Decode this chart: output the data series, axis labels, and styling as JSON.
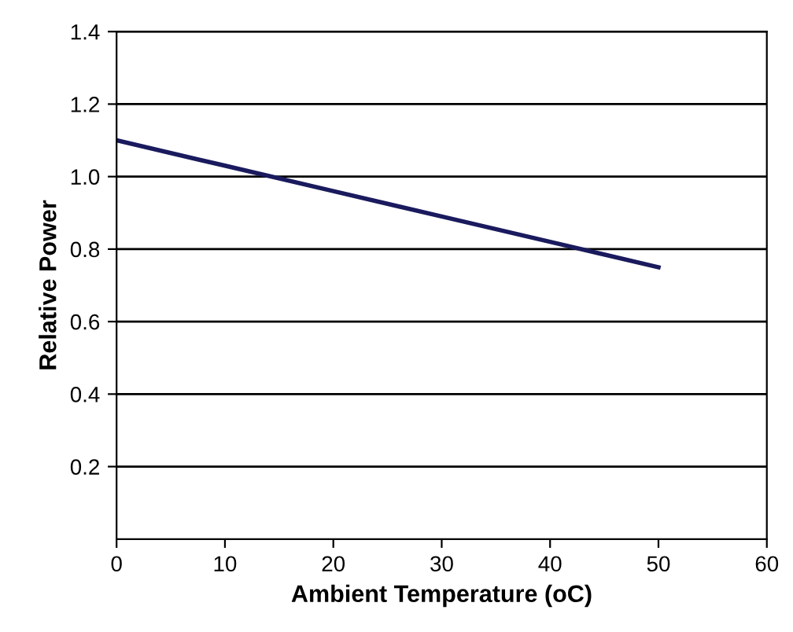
{
  "chart_data": {
    "type": "line",
    "xlabel": "Ambient Temperature (oC)",
    "ylabel": "Relative Power",
    "x": [
      0,
      10,
      20,
      30,
      40,
      50
    ],
    "series": [
      {
        "color": "#1a1a5e",
        "values": [
          1.1,
          1.03,
          0.96,
          0.89,
          0.82,
          0.75
        ]
      }
    ],
    "xlim": [
      0,
      60
    ],
    "xticks": [
      0,
      10,
      20,
      30,
      40,
      50,
      60
    ],
    "ylim": [
      0,
      1.4
    ],
    "yticks": [
      {
        "value": 0.2,
        "label": "0.2"
      },
      {
        "value": 0.4,
        "label": "0.4"
      },
      {
        "value": 0.6,
        "label": "0.6"
      },
      {
        "value": 0.8,
        "label": "0.8"
      },
      {
        "value": 1.0,
        "label": "1.0"
      },
      {
        "value": 1.2,
        "label": "1.2"
      },
      {
        "value": 1.4,
        "label": "1.4"
      }
    ],
    "grid": "y",
    "marker": "none",
    "line_style": "solid"
  }
}
